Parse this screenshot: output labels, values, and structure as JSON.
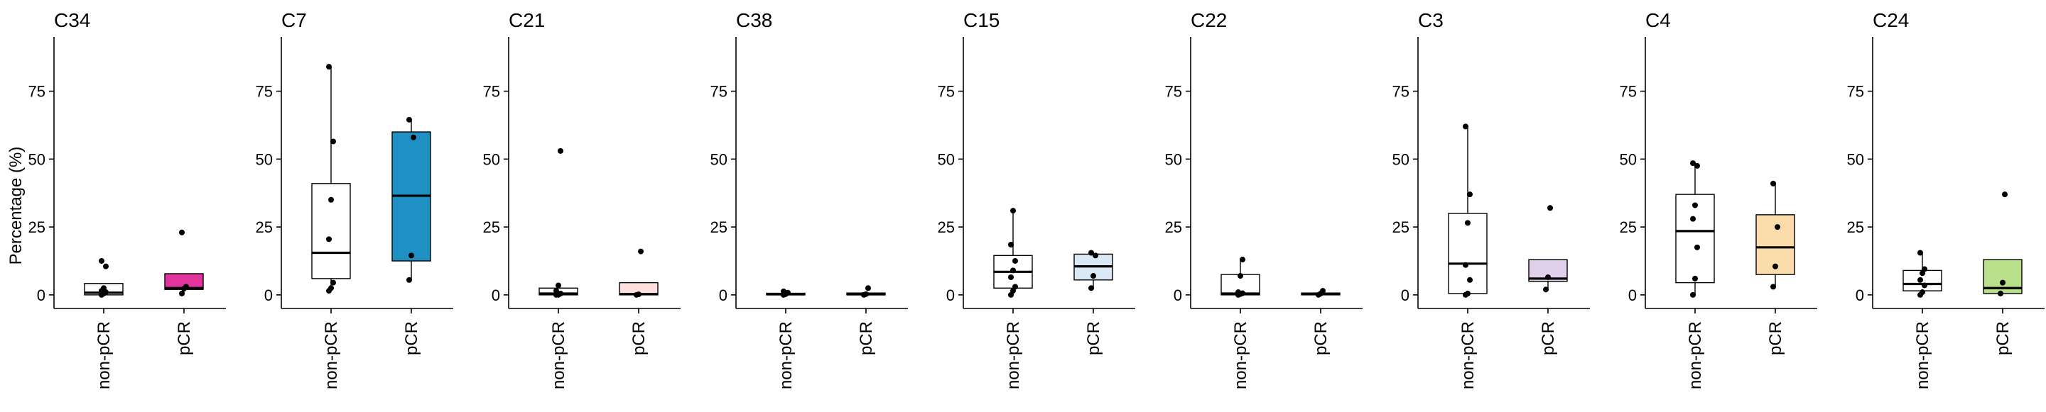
{
  "y_axis_label": "Percentage (%)",
  "chart_data": {
    "type": "boxplot",
    "ylabel": "Percentage (%)",
    "ylim": [
      -5,
      95
    ],
    "yticks": [
      0,
      25,
      50,
      75
    ],
    "groups": [
      "non-pCR",
      "pCR"
    ],
    "grid": false,
    "panels": [
      {
        "title": "C34",
        "color": "#e0359e",
        "boxes": [
          {
            "group": "non-pCR",
            "min": 0,
            "q1": 0,
            "median": 0.8,
            "q3": 4.2,
            "max": 4.2,
            "points": [
              0,
              0.5,
              1,
              1.5,
              2.5,
              10.5,
              12.5
            ]
          },
          {
            "group": "pCR",
            "min": 0.5,
            "q1": 2.0,
            "median": 2.5,
            "q3": 7.8,
            "max": 7.8,
            "points": [
              0.5,
              2.3,
              3.0,
              23.0
            ]
          }
        ]
      },
      {
        "title": "C7",
        "color": "#1e90c4",
        "boxes": [
          {
            "group": "non-pCR",
            "min": 1.5,
            "q1": 6.0,
            "median": 15.5,
            "q3": 41.0,
            "max": 84.0,
            "points": [
              1.5,
              2.5,
              4.5,
              20.5,
              35.0,
              56.5,
              84.0
            ]
          },
          {
            "group": "pCR",
            "min": 5.5,
            "q1": 12.5,
            "median": 36.5,
            "q3": 60.0,
            "max": 64.5,
            "points": [
              5.5,
              14.5,
              58.0,
              64.5
            ]
          }
        ]
      },
      {
        "title": "C21",
        "color": "#fde0de",
        "boxes": [
          {
            "group": "non-pCR",
            "min": 0,
            "q1": 0,
            "median": 0.5,
            "q3": 2.5,
            "max": 2.5,
            "points": [
              0,
              0,
              0.5,
              1.5,
              3.5,
              53.0
            ]
          },
          {
            "group": "pCR",
            "min": 0,
            "q1": 0,
            "median": 0.3,
            "q3": 4.5,
            "max": 4.5,
            "points": [
              0,
              0.2,
              16.0
            ]
          }
        ]
      },
      {
        "title": "C38",
        "color": "#2a2a2a",
        "boxes": [
          {
            "group": "non-pCR",
            "min": 0,
            "q1": 0,
            "median": 0.2,
            "q3": 0.6,
            "max": 1.0,
            "points": [
              0,
              0.3,
              0.8,
              1.3
            ]
          },
          {
            "group": "pCR",
            "min": 0,
            "q1": 0,
            "median": 0.2,
            "q3": 0.7,
            "max": 0.7,
            "points": [
              0,
              0.3,
              2.5
            ]
          }
        ]
      },
      {
        "title": "C15",
        "color": "#dbe9f6",
        "boxes": [
          {
            "group": "non-pCR",
            "min": 0,
            "q1": 2.5,
            "median": 8.5,
            "q3": 14.5,
            "max": 31.0,
            "points": [
              0,
              1.5,
              3.0,
              6.5,
              9.0,
              12.5,
              18.5,
              31.0
            ]
          },
          {
            "group": "pCR",
            "min": 2.5,
            "q1": 5.5,
            "median": 10.5,
            "q3": 15.0,
            "max": 15.0,
            "points": [
              2.5,
              7.0,
              14.5,
              15.5
            ]
          }
        ]
      },
      {
        "title": "C22",
        "color": "#111111",
        "boxes": [
          {
            "group": "non-pCR",
            "min": 0,
            "q1": 0,
            "median": 0.5,
            "q3": 7.5,
            "max": 13.0,
            "points": [
              0,
              0.3,
              0.6,
              1.0,
              7.0,
              13.0
            ]
          },
          {
            "group": "pCR",
            "min": 0,
            "q1": 0,
            "median": 0.3,
            "q3": 0.7,
            "max": 1.2,
            "points": [
              0,
              0.5,
              1.5
            ]
          }
        ]
      },
      {
        "title": "C3",
        "color": "#e0d0ea",
        "boxes": [
          {
            "group": "non-pCR",
            "min": 0,
            "q1": 0.5,
            "median": 11.5,
            "q3": 30.0,
            "max": 62.0,
            "points": [
              0,
              0.5,
              5.5,
              11.0,
              26.5,
              37.0,
              62.0
            ]
          },
          {
            "group": "pCR",
            "min": 2.0,
            "q1": 5.0,
            "median": 6.0,
            "q3": 13.0,
            "max": 13.0,
            "points": [
              2.0,
              6.5,
              32.0
            ]
          }
        ]
      },
      {
        "title": "C4",
        "color": "#fbdcaa",
        "boxes": [
          {
            "group": "non-pCR",
            "min": 0,
            "q1": 4.5,
            "median": 23.5,
            "q3": 37.0,
            "max": 49.0,
            "points": [
              0,
              6.0,
              17.5,
              28.0,
              33.0,
              47.5,
              48.5
            ]
          },
          {
            "group": "pCR",
            "min": 3.0,
            "q1": 7.5,
            "median": 17.5,
            "q3": 29.5,
            "max": 41.0,
            "points": [
              3.0,
              10.5,
              25.0,
              41.0
            ]
          }
        ]
      },
      {
        "title": "C24",
        "color": "#b8e08a",
        "boxes": [
          {
            "group": "non-pCR",
            "min": 0,
            "q1": 1.5,
            "median": 4.0,
            "q3": 9.0,
            "max": 15.5,
            "points": [
              0,
              1.0,
              3.5,
              5.5,
              8.0,
              9.5,
              15.5
            ]
          },
          {
            "group": "pCR",
            "min": 0.5,
            "q1": 0.5,
            "median": 2.5,
            "q3": 13.0,
            "max": 13.0,
            "points": [
              0.5,
              4.5,
              37.0
            ]
          }
        ]
      }
    ]
  }
}
